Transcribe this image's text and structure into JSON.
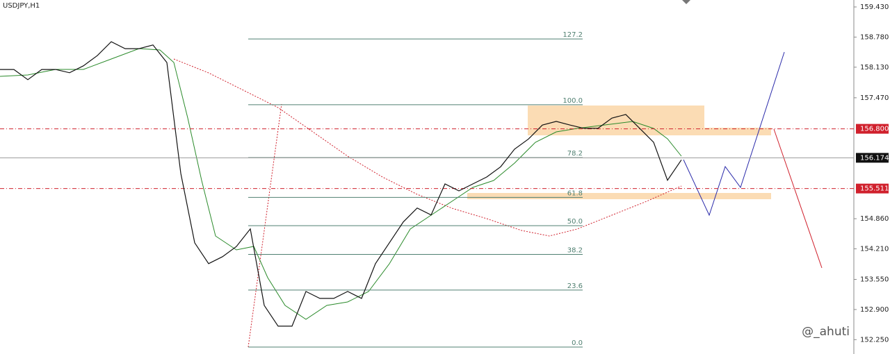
{
  "chart_data": {
    "type": "line",
    "title": "USDJPY,H1",
    "watermark": "@_ahuti",
    "ylim": [
      151.94,
      159.58
    ],
    "yticks": [
      {
        "value": 159.43,
        "label": "159.430"
      },
      {
        "value": 158.78,
        "label": "158.780"
      },
      {
        "value": 158.13,
        "label": "158.130"
      },
      {
        "value": 157.47,
        "label": "157.470"
      },
      {
        "value": 154.86,
        "label": "154.860"
      },
      {
        "value": 154.21,
        "label": "154.210"
      },
      {
        "value": 153.55,
        "label": "153.550"
      },
      {
        "value": 152.9,
        "label": "152.900"
      },
      {
        "value": 152.25,
        "label": "152.250"
      }
    ],
    "series": [
      {
        "color": "#111111",
        "values": [
          158.08,
          158.08,
          157.86,
          158.08,
          158.08,
          158.01,
          158.16,
          158.38,
          158.68,
          158.53,
          158.53,
          158.61,
          158.23,
          155.84,
          154.34,
          153.89,
          154.04,
          154.26,
          154.64,
          152.99,
          152.54,
          152.54,
          153.29,
          153.14,
          153.14,
          153.29,
          153.14,
          153.89,
          154.34,
          154.79,
          155.09,
          154.94,
          155.61,
          155.46,
          155.61,
          155.76,
          155.98,
          156.36,
          156.58,
          156.88,
          156.96,
          156.88,
          156.81,
          156.81,
          157.03,
          157.11,
          156.81,
          156.51,
          155.69,
          156.13
        ]
      }
    ],
    "fib_levels": [
      {
        "label": "127.2",
        "price": 158.74
      },
      {
        "label": "100.0",
        "price": 157.32
      },
      {
        "label": "78.2",
        "price": 156.18
      },
      {
        "label": "61.8",
        "price": 155.32
      },
      {
        "label": "50.0",
        "price": 154.71
      },
      {
        "label": "38.2",
        "price": 154.09
      },
      {
        "label": "23.6",
        "price": 153.32
      },
      {
        "label": "0.0",
        "price": 152.09
      }
    ],
    "fib_color": "#4f7f70",
    "price_lines": [
      {
        "label": "156.800",
        "price": 156.8,
        "color": "#d0202c",
        "dashed": true
      },
      {
        "label": "156.174",
        "price": 156.174,
        "color": "#111111",
        "dashed": false
      },
      {
        "label": "155.511",
        "price": 155.511,
        "color": "#d0202c",
        "dashed": true
      }
    ]
  }
}
